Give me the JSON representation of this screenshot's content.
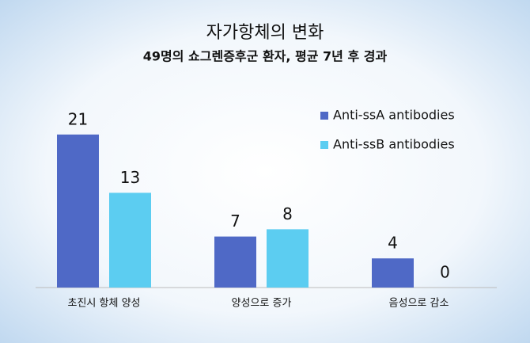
{
  "chart_data": {
    "type": "bar",
    "title": "자가항체의 변화",
    "subtitle": "49명의 쇼그렌증후군 환자, 평균 7년 후 경과",
    "categories": [
      "초진시 항체 양성",
      "양성으로 증가",
      "음성으로 감소"
    ],
    "series": [
      {
        "name": "Anti-ssA antibodies",
        "color": "#4f69c6",
        "values": [
          21,
          7,
          4
        ]
      },
      {
        "name": "Anti-ssB antibodies",
        "color": "#5ccdf1",
        "values": [
          13,
          8,
          0
        ]
      }
    ],
    "legend": "top-right"
  }
}
